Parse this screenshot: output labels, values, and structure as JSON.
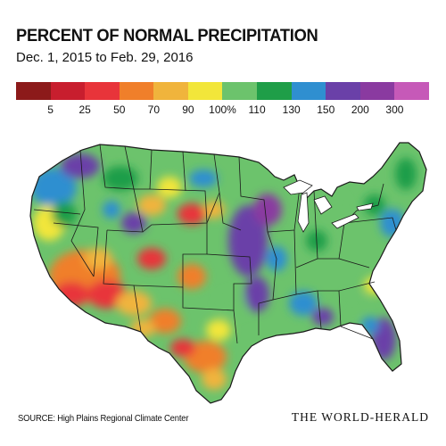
{
  "header": {
    "title": "PERCENT OF NORMAL PRECIPITATION",
    "subtitle": "Dec. 1, 2015 to Feb. 29, 2016"
  },
  "legend": {
    "colors": [
      "#8c1a1a",
      "#c81e2e",
      "#e8343a",
      "#f07f2a",
      "#f0b43c",
      "#f2e63a",
      "#6cc36c",
      "#1f9e48",
      "#2f8fd0",
      "#6a40a8",
      "#8a3aa0",
      "#c659b8"
    ],
    "labels": [
      "5",
      "25",
      "50",
      "70",
      "90",
      "100%",
      "110",
      "130",
      "150",
      "200",
      "300"
    ]
  },
  "footer": {
    "source": "SOURCE: High Plains Regional Climate Center",
    "brand": "THE WORLD-HERALD"
  }
}
